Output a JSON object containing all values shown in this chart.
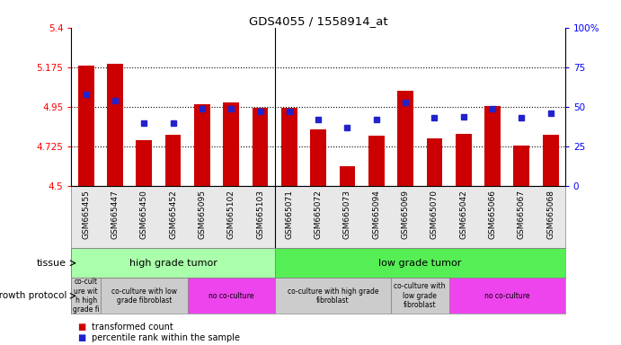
{
  "title": "GDS4055 / 1558914_at",
  "samples": [
    "GSM665455",
    "GSM665447",
    "GSM665450",
    "GSM665452",
    "GSM665095",
    "GSM665102",
    "GSM665103",
    "GSM665071",
    "GSM665072",
    "GSM665073",
    "GSM665094",
    "GSM665069",
    "GSM665070",
    "GSM665042",
    "GSM665066",
    "GSM665067",
    "GSM665068"
  ],
  "bar_values": [
    5.185,
    5.195,
    4.76,
    4.79,
    4.965,
    4.975,
    4.945,
    4.945,
    4.825,
    4.615,
    4.785,
    5.04,
    4.77,
    4.795,
    4.955,
    4.73,
    4.79
  ],
  "dot_pcts": [
    58,
    54,
    40,
    40,
    49,
    49,
    47,
    47,
    42,
    37,
    42,
    53,
    43,
    44,
    49,
    43,
    46
  ],
  "ylim_left": [
    4.5,
    5.4
  ],
  "ylim_right": [
    0,
    100
  ],
  "yticks_left": [
    4.5,
    4.725,
    4.95,
    5.175,
    5.4
  ],
  "yticks_right": [
    0,
    25,
    50,
    75,
    100
  ],
  "hline_values": [
    5.175,
    4.95,
    4.725
  ],
  "bar_color": "#cc0000",
  "dot_color": "#2222cc",
  "bar_bottom": 4.5,
  "tissue_separator": 6.5,
  "tissue_groups": [
    {
      "label": "high grade tumor",
      "start": 0,
      "end": 7,
      "color": "#aaffaa"
    },
    {
      "label": "low grade tumor",
      "start": 7,
      "end": 17,
      "color": "#55ee55"
    }
  ],
  "protocol_groups": [
    {
      "label": "co-cult\nure wit\nh high\ngrade fi",
      "start": 0,
      "end": 1,
      "color": "#cccccc"
    },
    {
      "label": "co-culture with low\ngrade fibroblast",
      "start": 1,
      "end": 4,
      "color": "#cccccc"
    },
    {
      "label": "no co-culture",
      "start": 4,
      "end": 7,
      "color": "#ee44ee"
    },
    {
      "label": "co-culture with high grade\nfibroblast",
      "start": 7,
      "end": 11,
      "color": "#cccccc"
    },
    {
      "label": "co-culture with\nlow grade\nfibroblast",
      "start": 11,
      "end": 13,
      "color": "#cccccc"
    },
    {
      "label": "no co-culture",
      "start": 13,
      "end": 17,
      "color": "#ee44ee"
    }
  ],
  "n_samples": 17,
  "bar_width": 0.55
}
